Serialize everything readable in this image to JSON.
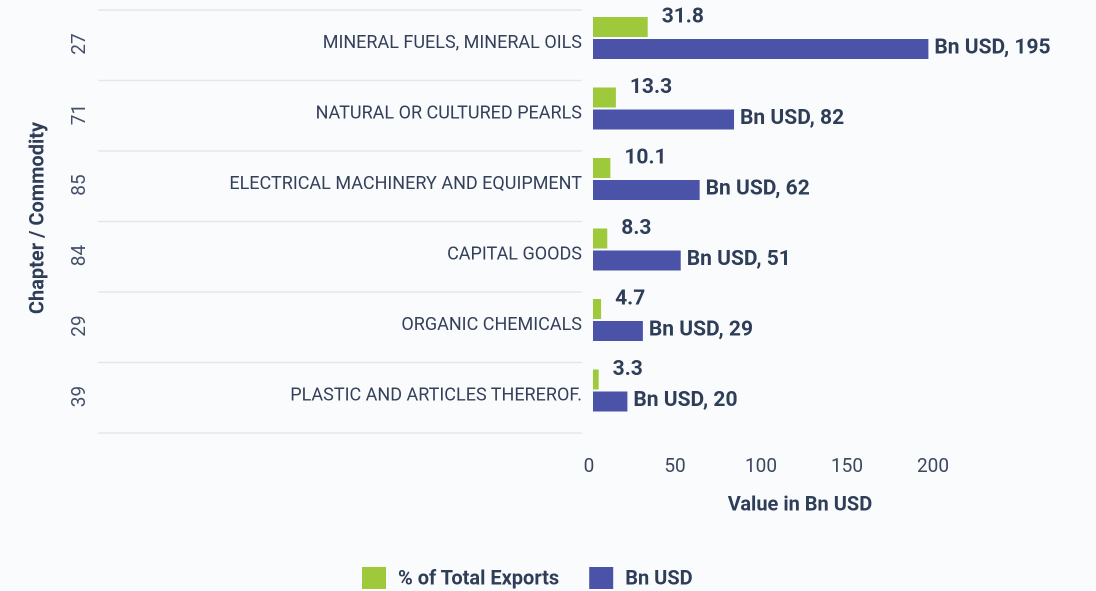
{
  "chart_data": {
    "type": "bar",
    "orientation": "horizontal",
    "xlabel": "Value in Bn USD",
    "ylabel": "Chapter / Commodity",
    "chapters": [
      "27",
      "71",
      "85",
      "84",
      "29",
      "39"
    ],
    "categories": [
      "MINERAL FUELS, MINERAL OILS",
      "NATURAL OR CULTURED PEARLS",
      "ELECTRICAL MACHINERY AND EQUIPMENT",
      "CAPITAL GOODS",
      "ORGANIC CHEMICALS",
      "PLASTIC AND ARTICLES THEREROF."
    ],
    "series": [
      {
        "name": "% of Total Exports",
        "color": "#9dc93b",
        "values": [
          31.8,
          13.3,
          10.1,
          8.3,
          4.7,
          3.3
        ]
      },
      {
        "name": "Bn USD",
        "color": "#4b53a8",
        "values": [
          195,
          82,
          62,
          51,
          29,
          20
        ],
        "value_labels": [
          "Bn USD, 195",
          "Bn USD, 82",
          "Bn USD, 62",
          "Bn USD, 51",
          "Bn USD, 29",
          "Bn USD, 20"
        ]
      }
    ],
    "xlim": [
      0,
      200
    ],
    "xticks": [
      0,
      50,
      100,
      150,
      200
    ],
    "legend": "bottom"
  }
}
